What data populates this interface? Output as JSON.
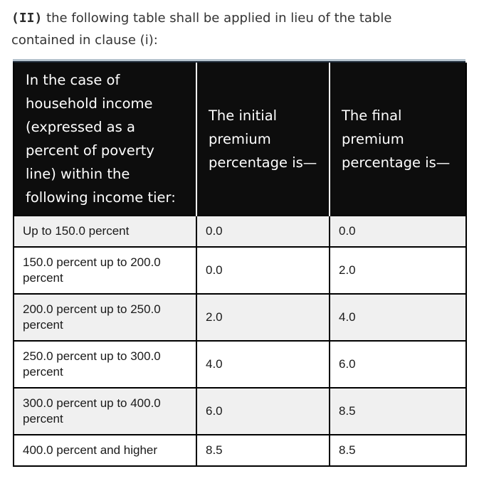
{
  "intro": {
    "clause_marker": "(II)",
    "text": "the following table shall be applied in lieu of the table contained in clause (i):"
  },
  "table": {
    "headers": {
      "tier": "In the case of household income (expressed as a percent of poverty line) within the following income tier:",
      "initial": "The initial premium percentage is—",
      "final": "The final premium percentage is—"
    },
    "rows": [
      {
        "tier": "Up to 150.0 percent",
        "initial": "0.0",
        "final": "0.0"
      },
      {
        "tier": "150.0 percent up to 200.0 percent",
        "initial": "0.0",
        "final": "2.0"
      },
      {
        "tier": "200.0 percent up to 250.0 percent",
        "initial": "2.0",
        "final": "4.0"
      },
      {
        "tier": "250.0 percent up to 300.0 percent",
        "initial": "4.0",
        "final": "6.0"
      },
      {
        "tier": "300.0 percent up to 400.0 percent",
        "initial": "6.0",
        "final": "8.5"
      },
      {
        "tier": "400.0 percent and higher",
        "initial": "8.5",
        "final": "8.5"
      }
    ],
    "colors": {
      "header_bg": "#0d0d0d",
      "header_text": "#ffffff",
      "stripe_bg": "#f0f0f0",
      "row_bg": "#ffffff",
      "border": "#000000",
      "top_accent": "#b3c1cc",
      "top_accent_dark": "#1a2532",
      "body_text": "#1a1a1a",
      "intro_text": "#333333"
    }
  }
}
